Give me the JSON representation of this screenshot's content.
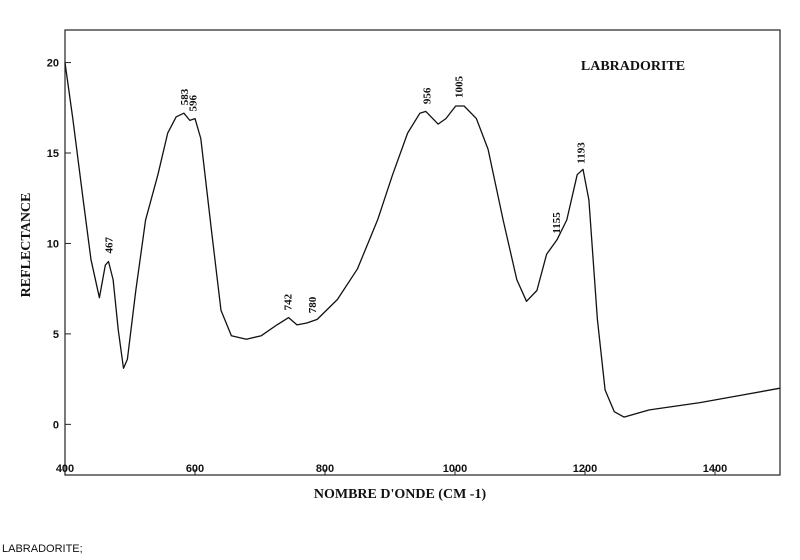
{
  "chart_data": {
    "type": "line",
    "title": "LABRADORITE",
    "caption": "LABRADORITE;",
    "x_label": "NOMBRE D'ONDE (CM -1)",
    "y_label": "REFLECTANCE",
    "color": "#111111",
    "x": [
      400,
      412,
      428,
      440,
      453,
      462,
      467,
      474,
      482,
      490,
      496,
      509,
      524,
      543,
      558,
      571,
      583,
      592,
      600,
      609,
      625,
      640,
      656,
      679,
      702,
      726,
      744,
      757,
      772,
      788,
      819,
      850,
      881,
      904,
      927,
      946,
      955,
      974,
      986,
      1001,
      1014,
      1033,
      1051,
      1074,
      1095,
      1110,
      1126,
      1141,
      1157,
      1172,
      1188,
      1197,
      1206,
      1219,
      1231,
      1245,
      1260,
      1299,
      1377,
      1439,
      1500
    ],
    "values": [
      20.0,
      16.9,
      12.4,
      9.1,
      7.0,
      8.8,
      9.0,
      8.0,
      5.2,
      3.1,
      3.6,
      7.4,
      11.3,
      13.8,
      16.1,
      17.0,
      17.2,
      16.8,
      16.9,
      15.8,
      10.8,
      6.3,
      4.9,
      4.7,
      4.9,
      5.5,
      5.9,
      5.5,
      5.6,
      5.8,
      6.9,
      8.6,
      11.3,
      13.8,
      16.1,
      17.2,
      17.3,
      16.6,
      16.9,
      17.6,
      17.6,
      16.9,
      15.2,
      11.3,
      8.0,
      6.8,
      7.4,
      9.4,
      10.2,
      11.3,
      13.8,
      14.1,
      12.4,
      5.8,
      1.9,
      0.7,
      0.4,
      0.8,
      1.2,
      1.6,
      2.0
    ],
    "annotations": [
      "467",
      "583",
      "596",
      "742",
      "780",
      "956",
      "1005",
      "1155",
      "1193"
    ],
    "xlim": [
      400,
      1500
    ],
    "xticks": [
      400,
      600,
      800,
      1000,
      1200,
      1400
    ],
    "ylim": [
      -2.8,
      21.8
    ],
    "yticks": [
      0,
      5,
      10,
      15,
      20
    ]
  }
}
